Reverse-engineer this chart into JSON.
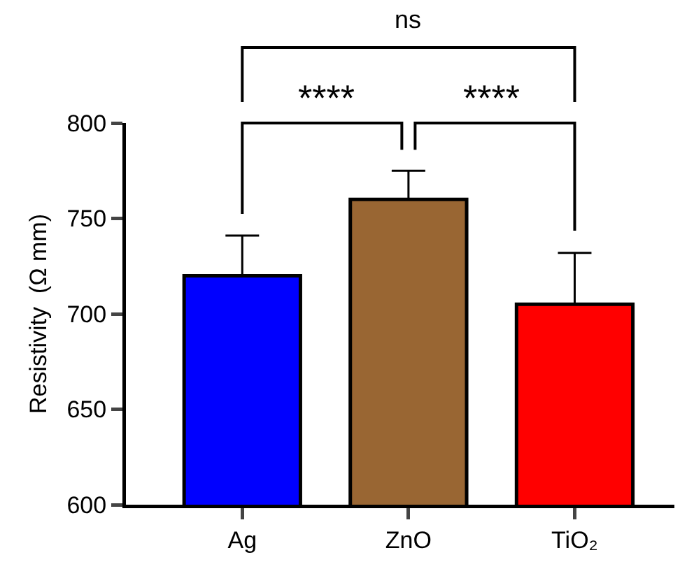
{
  "chart_data": {
    "type": "bar",
    "ylabel": "Resistivity  (Ω mm)",
    "categories": [
      "Ag",
      "ZnO",
      "TiO₂"
    ],
    "values": [
      720,
      760,
      705
    ],
    "colors": [
      "#0000ff",
      "#996633",
      "#ff0000"
    ],
    "errors": [
      [
        720,
        741
      ],
      [
        760,
        775
      ],
      [
        705,
        732
      ]
    ],
    "ylim": [
      600,
      800
    ],
    "yticks": [
      600,
      650,
      700,
      750,
      800
    ],
    "grid": false,
    "annotations": [
      "ns",
      "****",
      "****"
    ]
  }
}
